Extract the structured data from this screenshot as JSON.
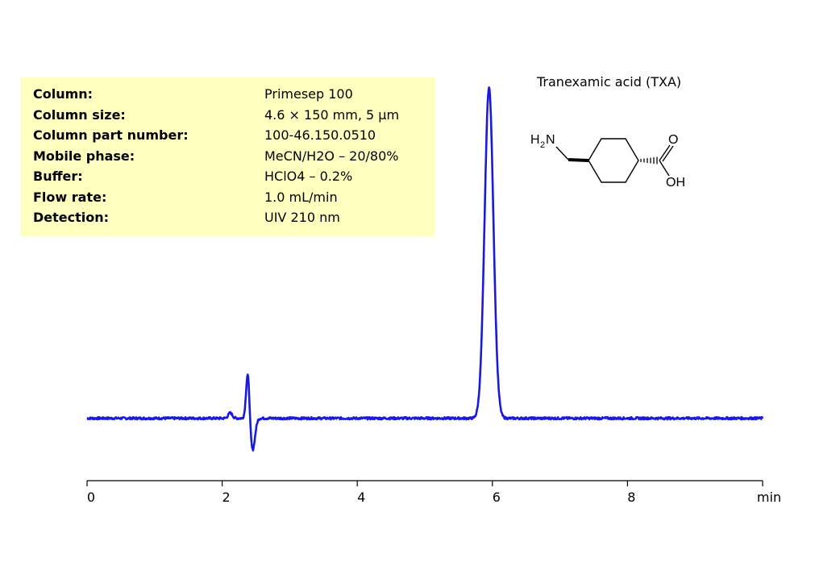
{
  "info": [
    {
      "label": "Column:",
      "value": "Primesep  100"
    },
    {
      "label": "Column size:",
      "value": "4.6 × 150 mm, 5 µm"
    },
    {
      "label": "Column part number:",
      "value": "100-46.150.0510"
    },
    {
      "label": "Mobile phase:",
      "value": "MeCN/H2O – 20/80%"
    },
    {
      "label": "Buffer:",
      "value": "HClO4 – 0.2%"
    },
    {
      "label": "Flow rate:",
      "value": "1.0 mL/min"
    },
    {
      "label": "Detection:",
      "value": "UIV 210 nm"
    }
  ],
  "compound": {
    "name": "Tranexamic acid (TXA)",
    "atoms": {
      "amine_h": "H",
      "amine_sub": "2",
      "amine_n": "N",
      "carbonyl_o": "O",
      "hydroxyl": "OH"
    }
  },
  "chart_data": {
    "type": "line",
    "xlabel": "min",
    "xlim": [
      0,
      10
    ],
    "ylim": [
      -0.5,
      4.6
    ],
    "x_ticks": [
      0,
      2,
      4,
      6,
      8
    ],
    "x_tick_labels": [
      "0",
      "2",
      "4",
      "6",
      "8"
    ],
    "line_color": "#1a1adc",
    "baseline": 0,
    "peaks": [
      {
        "x": 2.12,
        "height": 0.07,
        "width": 0.03
      },
      {
        "x": 2.38,
        "height": 0.62,
        "width": 0.025
      },
      {
        "x": 2.45,
        "height": -0.42,
        "width": 0.035
      },
      {
        "x": 5.95,
        "height": 4.33,
        "width": 0.065
      }
    ],
    "noise_amplitude": 0.015
  }
}
